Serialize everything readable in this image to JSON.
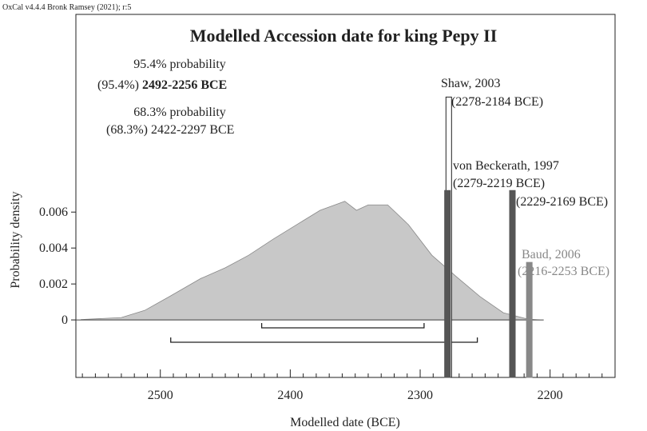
{
  "chart_data": {
    "type": "area",
    "header": "OxCal v4.4.4 Bronk Ramsey (2021); r:5",
    "title": "Modelled Accession date for king Pepy II",
    "x_label": "Modelled date (BCE)",
    "y_label": "Probability density",
    "x": [
      2561,
      2530,
      2512,
      2493,
      2469,
      2450,
      2432,
      2413,
      2395,
      2377,
      2358,
      2349,
      2340,
      2325,
      2309,
      2291,
      2272,
      2254,
      2236,
      2217,
      2208
    ],
    "values": [
      2e-05,
      0.00013,
      0.00053,
      0.0013,
      0.0023,
      0.0029,
      0.0036,
      0.0045,
      0.0053,
      0.0061,
      0.0066,
      0.0061,
      0.0064,
      0.0064,
      0.0053,
      0.0036,
      0.0024,
      0.0013,
      0.0004,
      4e-05,
      0
    ],
    "color": "#c8c8c8",
    "xlim": [
      2565,
      2150
    ],
    "ylim": [
      -0.0032,
      0.017
    ],
    "xticks": [
      2500,
      2400,
      2300,
      2200
    ],
    "xminorticks": [
      2560,
      2550,
      2540,
      2530,
      2520,
      2510,
      2490,
      2480,
      2470,
      2460,
      2450,
      2440,
      2430,
      2420,
      2410,
      2390,
      2380,
      2370,
      2360,
      2350,
      2340,
      2330,
      2320,
      2310,
      2290,
      2280,
      2270,
      2260,
      2250,
      2240,
      2230,
      2220,
      2210,
      2190,
      2180,
      2170,
      2160
    ],
    "yticks": [
      0,
      0.002,
      0.004,
      0.006
    ],
    "ranges": [
      {
        "level": "95.4% probability",
        "prefix": "(95.4%)",
        "label": "2492-2256 BCE",
        "from": 2492,
        "to": 2256
      },
      {
        "level": "68.3% probability",
        "prefix": "(68.3%)",
        "label": "2422-2297 BCE",
        "from": 2422,
        "to": 2297
      }
    ],
    "markers": [
      {
        "name": "Shaw, 2003",
        "label": "(2278-2184 BCE)",
        "x": 2278,
        "value": 0.0124,
        "color": "#ffffff"
      },
      {
        "name": "von Beckerath, 1997",
        "label": "(2279-2219 BCE)",
        "x": 2279,
        "value": 0.0072,
        "color": "#555555"
      },
      {
        "label": "(2229-2169 BCE)",
        "x": 2229,
        "value": 0.0072,
        "color": "#555555"
      },
      {
        "name": "Baud, 2006",
        "label": "(2216-2253 BCE)",
        "x": 2216,
        "value": 0.0032,
        "color": "#888888"
      }
    ]
  }
}
